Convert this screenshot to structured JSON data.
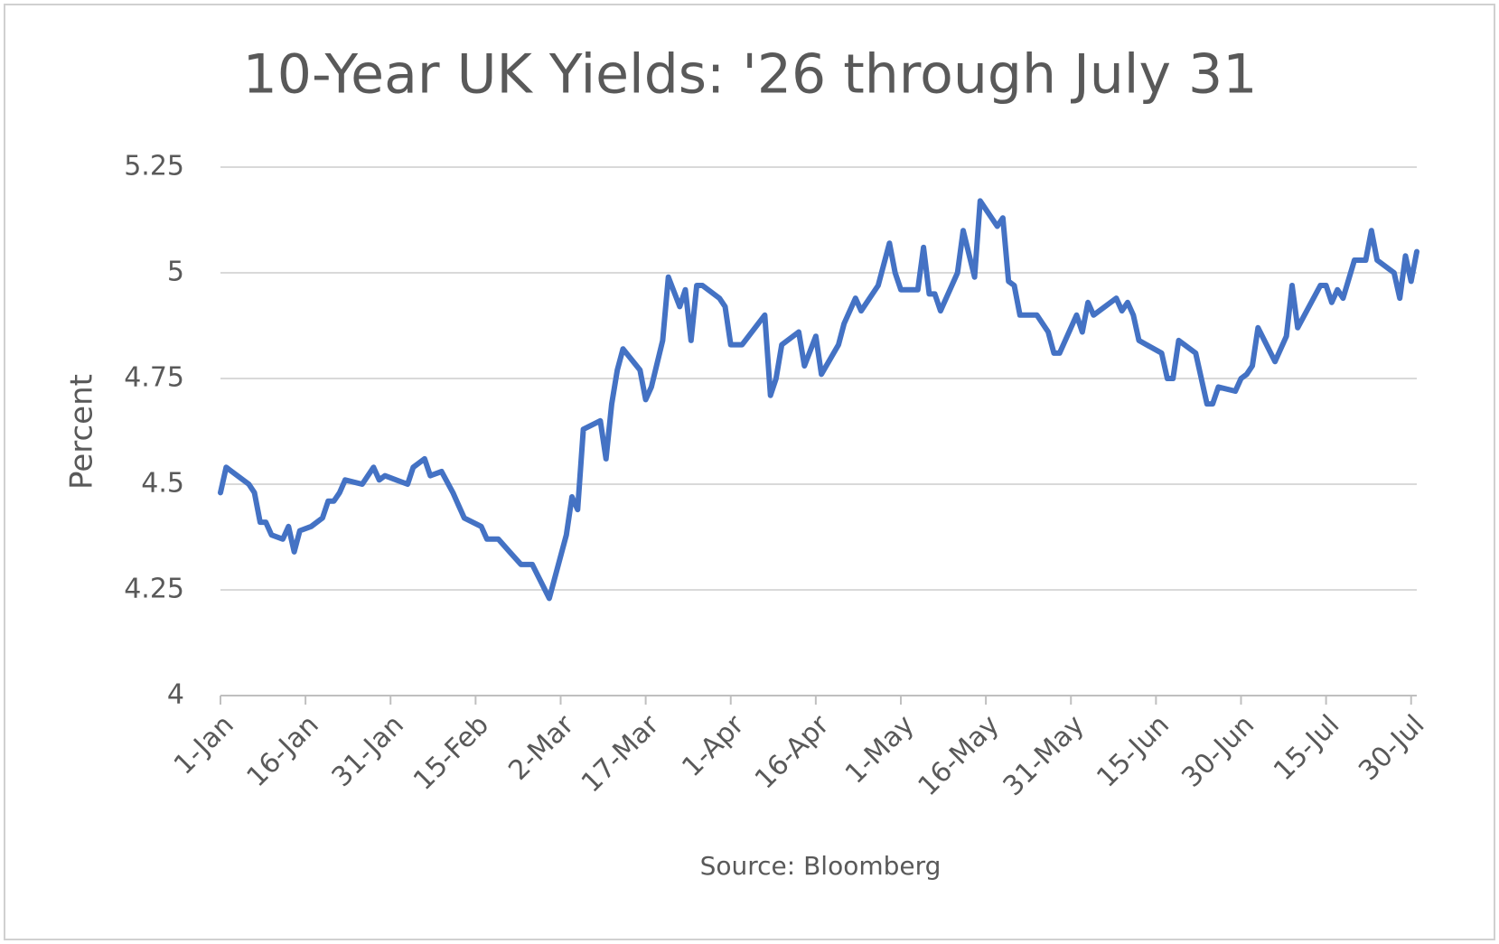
{
  "chart_data": {
    "type": "line",
    "title": "10-Year UK Yields: '26 through July 31",
    "y_label": "Percent",
    "source": "Source: Bloomberg",
    "x": [
      "1-Jan",
      "2-Jan",
      "4-Jan",
      "6-Jan",
      "7-Jan",
      "8-Jan",
      "9-Jan",
      "10-Jan",
      "12-Jan",
      "13-Jan",
      "14-Jan",
      "15-Jan",
      "17-Jan",
      "19-Jan",
      "20-Jan",
      "21-Jan",
      "22-Jan",
      "23-Jan",
      "26-Jan",
      "28-Jan",
      "29-Jan",
      "30-Jan",
      "1-Feb",
      "3-Feb",
      "4-Feb",
      "6-Feb",
      "7-Feb",
      "9-Feb",
      "11-Feb",
      "12-Feb",
      "13-Feb",
      "16-Feb",
      "17-Feb",
      "19-Feb",
      "21-Feb",
      "23-Feb",
      "25-Feb",
      "28-Feb",
      "3-Mar",
      "4-Mar",
      "5-Mar",
      "6-Mar",
      "9-Mar",
      "10-Mar",
      "11-Mar",
      "12-Mar",
      "13-Mar",
      "16-Mar",
      "17-Mar",
      "18-Mar",
      "20-Mar",
      "21-Mar",
      "23-Mar",
      "24-Mar",
      "25-Mar",
      "26-Mar",
      "27-Mar",
      "30-Mar",
      "31-Mar",
      "1-Apr",
      "3-Apr",
      "7-Apr",
      "8-Apr",
      "9-Apr",
      "10-Apr",
      "13-Apr",
      "14-Apr",
      "16-Apr",
      "17-Apr",
      "20-Apr",
      "21-Apr",
      "23-Apr",
      "24-Apr",
      "27-Apr",
      "29-Apr",
      "30-Apr",
      "1-May",
      "4-May",
      "5-May",
      "6-May",
      "7-May",
      "8-May",
      "11-May",
      "12-May",
      "14-May",
      "15-May",
      "18-May",
      "19-May",
      "20-May",
      "21-May",
      "22-May",
      "25-May",
      "27-May",
      "28-May",
      "29-May",
      "1-Jun",
      "2-Jun",
      "3-Jun",
      "4-Jun",
      "8-Jun",
      "9-Jun",
      "10-Jun",
      "11-Jun",
      "12-Jun",
      "16-Jun",
      "17-Jun",
      "18-Jun",
      "19-Jun",
      "22-Jun",
      "24-Jun",
      "25-Jun",
      "26-Jun",
      "29-Jun",
      "30-Jun",
      "1-Jul",
      "2-Jul",
      "3-Jul",
      "6-Jul",
      "8-Jul",
      "9-Jul",
      "10-Jul",
      "14-Jul",
      "15-Jul",
      "16-Jul",
      "17-Jul",
      "18-Jul",
      "20-Jul",
      "22-Jul",
      "23-Jul",
      "24-Jul",
      "27-Jul",
      "28-Jul",
      "29-Jul",
      "30-Jul",
      "31-Jul"
    ],
    "series": [
      {
        "name": "10-Year UK Yield",
        "color": "#4472c4",
        "values": [
          4.48,
          4.54,
          4.52,
          4.5,
          4.48,
          4.41,
          4.41,
          4.38,
          4.37,
          4.4,
          4.34,
          4.39,
          4.4,
          4.42,
          4.46,
          4.46,
          4.48,
          4.51,
          4.5,
          4.54,
          4.51,
          4.52,
          4.51,
          4.5,
          4.54,
          4.56,
          4.52,
          4.53,
          4.48,
          4.45,
          4.42,
          4.4,
          4.37,
          4.37,
          4.34,
          4.31,
          4.31,
          4.23,
          4.38,
          4.47,
          4.44,
          4.63,
          4.65,
          4.56,
          4.69,
          4.77,
          4.82,
          4.77,
          4.7,
          4.73,
          4.84,
          4.99,
          4.92,
          4.96,
          4.84,
          4.97,
          4.97,
          4.94,
          4.92,
          4.83,
          4.83,
          4.9,
          4.71,
          4.75,
          4.83,
          4.86,
          4.78,
          4.85,
          4.76,
          4.83,
          4.88,
          4.94,
          4.91,
          4.97,
          5.07,
          5.0,
          4.96,
          4.96,
          5.06,
          4.95,
          4.95,
          4.91,
          5.0,
          5.1,
          4.99,
          5.17,
          5.11,
          5.13,
          4.98,
          4.97,
          4.9,
          4.9,
          4.86,
          4.81,
          4.81,
          4.9,
          4.86,
          4.93,
          4.9,
          4.94,
          4.91,
          4.93,
          4.9,
          4.84,
          4.81,
          4.75,
          4.75,
          4.84,
          4.81,
          4.69,
          4.69,
          4.73,
          4.72,
          4.75,
          4.76,
          4.78,
          4.87,
          4.79,
          4.85,
          4.97,
          4.87,
          4.97,
          4.97,
          4.93,
          4.96,
          4.94,
          5.03,
          5.03,
          5.1,
          5.03,
          5.0,
          4.94,
          5.04,
          4.98,
          5.05
        ]
      }
    ],
    "xlim": [
      "1-Jan",
      "31-Jul"
    ],
    "xticks": [
      "1-Jan",
      "16-Jan",
      "31-Jan",
      "15-Feb",
      "2-Mar",
      "17-Mar",
      "1-Apr",
      "16-Apr",
      "1-May",
      "16-May",
      "31-May",
      "15-Jun",
      "30-Jun",
      "15-Jul",
      "30-Jul"
    ],
    "ylim": [
      4,
      5.25
    ],
    "yticks": [
      4,
      4.25,
      4.5,
      4.75,
      5,
      5.25
    ],
    "grid": true
  }
}
